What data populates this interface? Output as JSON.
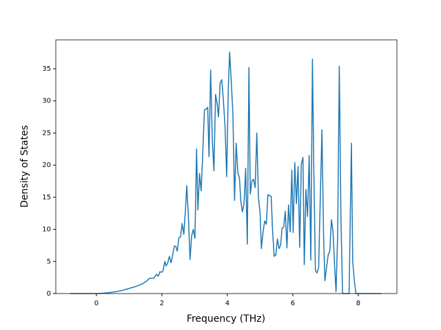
{
  "chart_data": {
    "type": "line",
    "xlabel": "Frequency (THz)",
    "ylabel": "Density of States",
    "xlim": [
      -1.24,
      9.18
    ],
    "ylim": [
      0,
      39.5
    ],
    "xticks": [
      0,
      2,
      4,
      6,
      8
    ],
    "yticks": [
      0,
      5,
      10,
      15,
      20,
      25,
      30,
      35
    ],
    "grid": false,
    "series": [
      {
        "color": "#1f77b4",
        "x": [
          -0.8,
          0,
          0.2,
          0.4,
          0.6,
          0.8,
          1.0,
          1.2,
          1.4,
          1.55,
          1.6,
          1.65,
          1.75,
          1.84,
          1.89,
          1.94,
          1.99,
          2.04,
          2.09,
          2.13,
          2.18,
          2.23,
          2.28,
          2.33,
          2.38,
          2.43,
          2.47,
          2.52,
          2.57,
          2.62,
          2.67,
          2.72,
          2.76,
          2.81,
          2.86,
          2.91,
          2.96,
          3.01,
          3.06,
          3.1,
          3.15,
          3.2,
          3.25,
          3.3,
          3.35,
          3.4,
          3.44,
          3.49,
          3.54,
          3.59,
          3.64,
          3.69,
          3.73,
          3.78,
          3.83,
          3.88,
          3.93,
          3.98,
          4.03,
          4.07,
          4.12,
          4.17,
          4.22,
          4.27,
          4.32,
          4.37,
          4.41,
          4.46,
          4.51,
          4.56,
          4.61,
          4.66,
          4.7,
          4.75,
          4.8,
          4.85,
          4.9,
          4.95,
          5.0,
          5.04,
          5.09,
          5.14,
          5.19,
          5.24,
          5.34,
          5.38,
          5.43,
          5.48,
          5.53,
          5.58,
          5.63,
          5.67,
          5.72,
          5.77,
          5.82,
          5.87,
          5.92,
          5.97,
          6.01,
          6.06,
          6.11,
          6.16,
          6.21,
          6.26,
          6.31,
          6.35,
          6.4,
          6.45,
          6.5,
          6.55,
          6.6,
          6.64,
          6.69,
          6.74,
          6.79,
          6.84,
          6.89,
          6.94,
          6.98,
          7.03,
          7.08,
          7.13,
          7.18,
          7.23,
          7.28,
          7.32,
          7.37,
          7.42,
          7.47,
          7.52,
          7.72,
          7.79,
          7.83,
          7.88,
          7.93,
          8.7
        ],
        "values": [
          0,
          0,
          0.05,
          0.15,
          0.3,
          0.5,
          0.8,
          1.1,
          1.5,
          2.0,
          2.3,
          2.4,
          2.4,
          3.0,
          2.7,
          3.4,
          3.3,
          3.6,
          5.0,
          4.3,
          4.8,
          5.8,
          4.8,
          6.0,
          7.4,
          7.3,
          6.6,
          8.7,
          8.8,
          10.9,
          9.2,
          13.0,
          16.8,
          12.0,
          5.3,
          9.0,
          10.0,
          8.6,
          22.5,
          13.0,
          18.7,
          16.0,
          22.0,
          28.6,
          28.7,
          29.0,
          21.3,
          34.8,
          24.0,
          19.1,
          31.0,
          29.5,
          27.5,
          32.8,
          33.3,
          30.0,
          26.0,
          18.2,
          32.0,
          37.6,
          33.0,
          28.0,
          14.5,
          23.4,
          18.8,
          18.0,
          14.5,
          12.7,
          14.0,
          19.5,
          7.7,
          35.2,
          15.5,
          17.5,
          17.8,
          16.5,
          25.0,
          15.0,
          12.5,
          7.0,
          9.5,
          11.3,
          10.8,
          15.4,
          15.1,
          10.0,
          5.8,
          6.0,
          8.5,
          7.0,
          7.6,
          10.2,
          10.3,
          12.8,
          7.1,
          13.8,
          9.6,
          19.2,
          9.5,
          20.4,
          14.0,
          19.8,
          7.2,
          20.2,
          21.2,
          4.5,
          16.2,
          12.0,
          21.5,
          5.2,
          36.5,
          20.0,
          3.6,
          3.2,
          4.1,
          15.0,
          25.5,
          9.0,
          2.0,
          4.0,
          6.0,
          6.6,
          11.5,
          9.5,
          4.0,
          0.3,
          9.0,
          35.4,
          12.0,
          0,
          0,
          23.4,
          5.0,
          2.0,
          0,
          0
        ]
      }
    ]
  }
}
